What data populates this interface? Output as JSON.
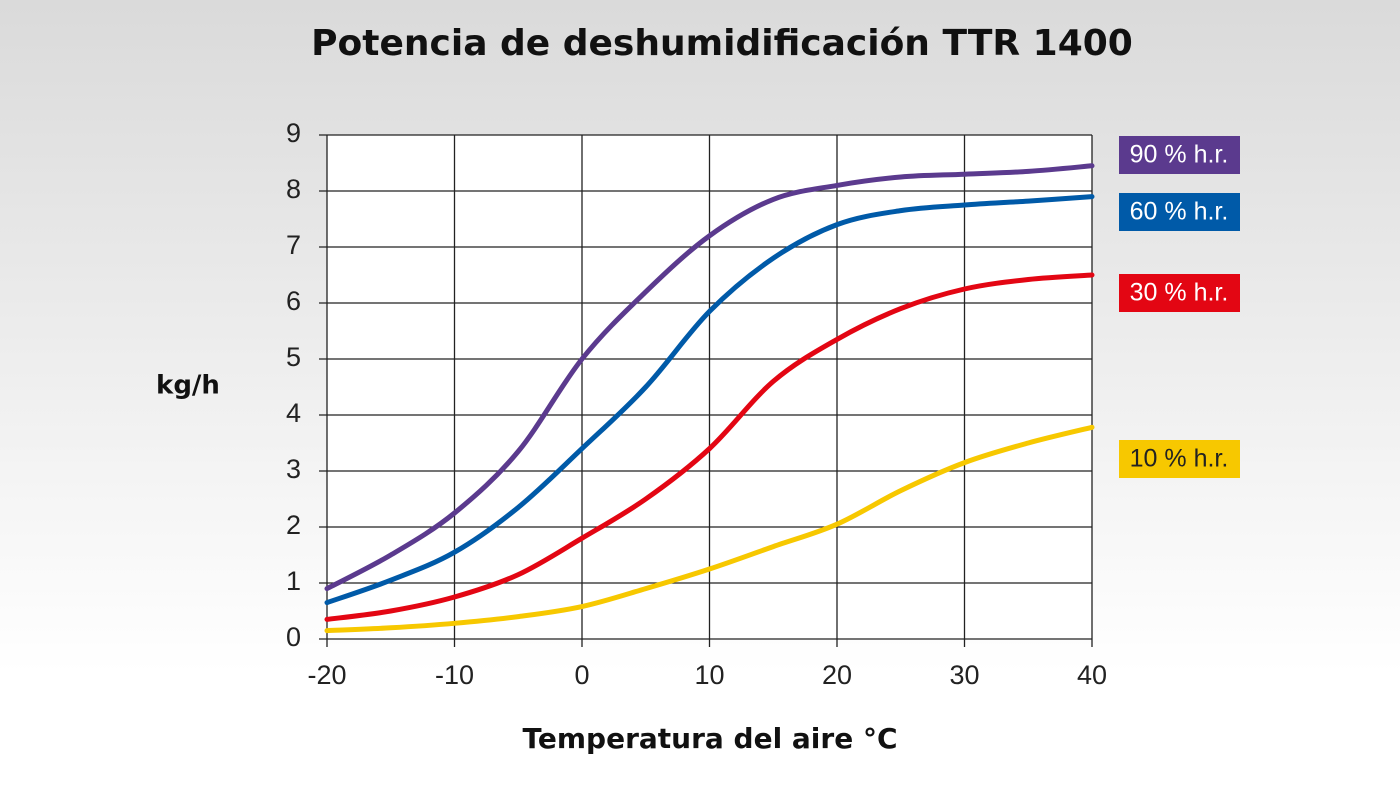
{
  "chart_data": {
    "type": "line",
    "title": "Potencia de deshumidificación TTR 1400",
    "x_label": "Temperatura del aire °C",
    "y_label": "kg/h",
    "x": [
      -20,
      -15,
      -10,
      -5,
      0,
      5,
      10,
      15,
      20,
      25,
      30,
      35,
      40
    ],
    "series": [
      {
        "name": "90 % h.r.",
        "color": "#5b3a8e",
        "values": [
          0.9,
          1.5,
          2.25,
          3.35,
          5.0,
          6.2,
          7.2,
          7.85,
          8.1,
          8.25,
          8.3,
          8.35,
          8.45
        ]
      },
      {
        "name": "60 % h.r.",
        "color": "#005aa8",
        "values": [
          0.65,
          1.05,
          1.55,
          2.35,
          3.4,
          4.5,
          5.85,
          6.8,
          7.4,
          7.65,
          7.75,
          7.82,
          7.9
        ]
      },
      {
        "name": "30 % h.r.",
        "color": "#e30613",
        "values": [
          0.35,
          0.5,
          0.75,
          1.15,
          1.8,
          2.5,
          3.4,
          4.6,
          5.35,
          5.9,
          6.25,
          6.42,
          6.5
        ]
      },
      {
        "name": "10 % h.r.",
        "color": "#f7c800",
        "values": [
          0.15,
          0.2,
          0.28,
          0.4,
          0.58,
          0.9,
          1.25,
          1.65,
          2.05,
          2.65,
          3.15,
          3.5,
          3.78
        ]
      }
    ],
    "xlim": [
      -20,
      40
    ],
    "xticks": [
      -20,
      -10,
      0,
      10,
      20,
      30,
      40
    ],
    "ylim": [
      0,
      9
    ],
    "yticks": [
      0,
      1,
      2,
      3,
      4,
      5,
      6,
      7,
      8,
      9
    ],
    "grid": true,
    "legend": "right"
  }
}
